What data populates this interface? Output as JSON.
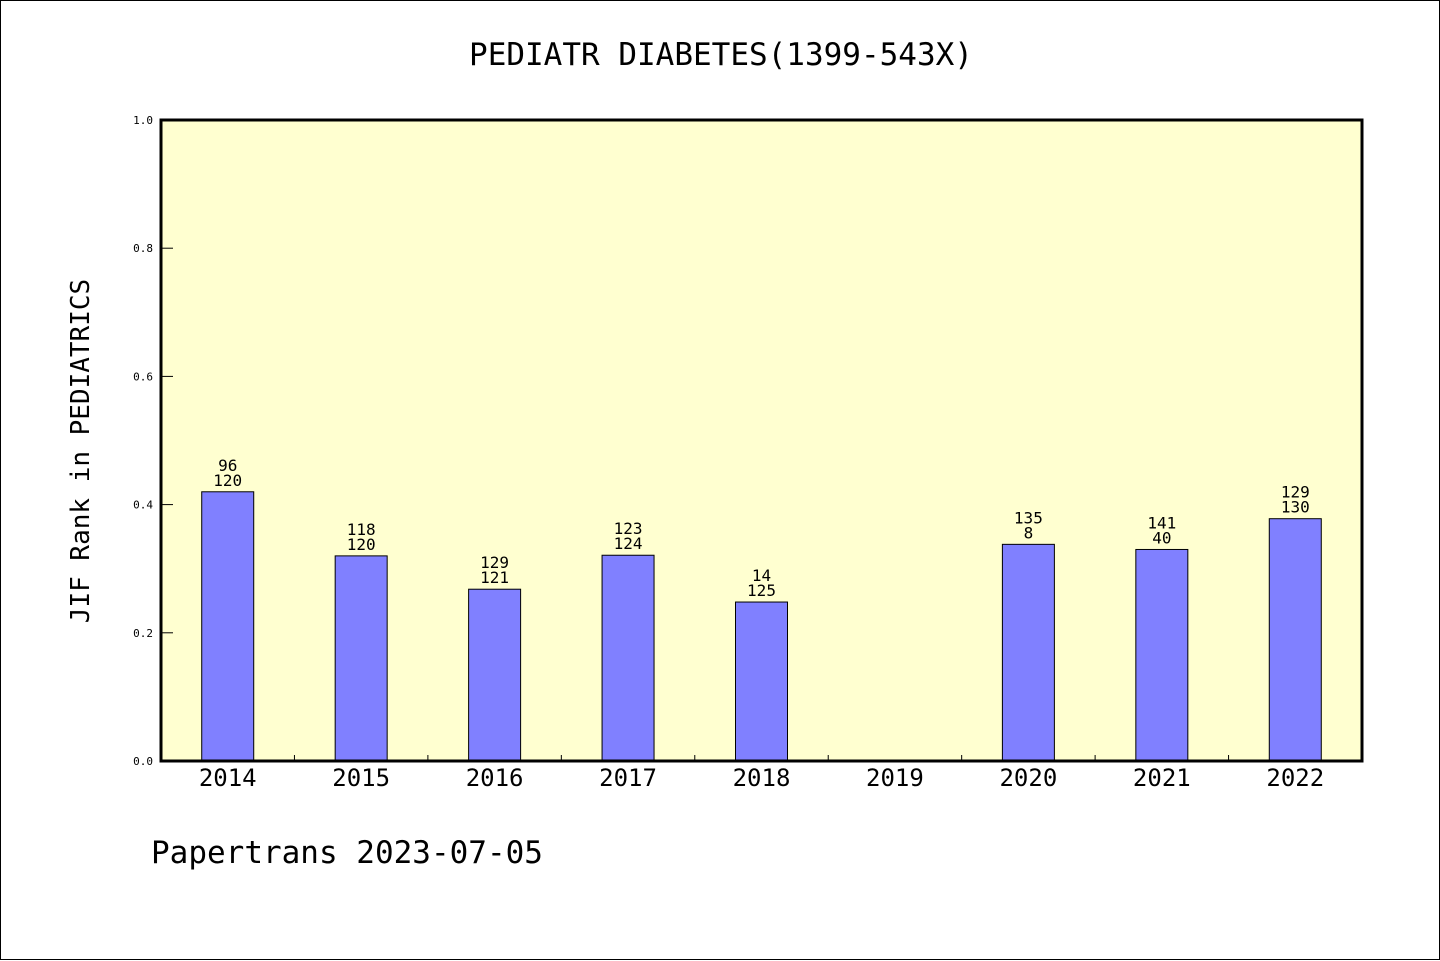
{
  "chart_data": {
    "type": "bar",
    "title": "PEDIATR DIABETES(1399-543X)",
    "xlabel": "",
    "ylabel": "JIF Rank in PEDIATRICS",
    "ylim": [
      0,
      1.0
    ],
    "yticks": [
      "0.0",
      "0.2",
      "0.4",
      "0.6",
      "0.8",
      "1.0"
    ],
    "grid": false,
    "background_color": "#ffffd0",
    "bar_color": "#8080ff",
    "categories": [
      "2014",
      "2015",
      "2016",
      "2017",
      "2018",
      "2019",
      "2020",
      "2021",
      "2022"
    ],
    "values": [
      0.42,
      0.32,
      0.268,
      0.321,
      0.248,
      null,
      0.338,
      0.33,
      0.378
    ],
    "bar_labels": [
      [
        "96",
        "120"
      ],
      [
        "118",
        "120"
      ],
      [
        "129",
        "121"
      ],
      [
        "123",
        "124"
      ],
      [
        "14",
        "125"
      ],
      null,
      [
        "135",
        "8"
      ],
      [
        "141",
        "40"
      ],
      [
        "129",
        "130"
      ]
    ]
  },
  "footer": {
    "credit": "Papertrans 2023-07-05"
  }
}
